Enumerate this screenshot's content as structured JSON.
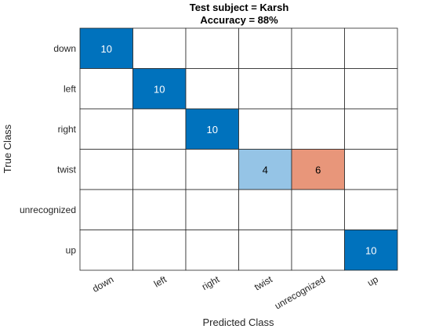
{
  "chart_data": {
    "type": "heatmap",
    "title": [
      "Test subject = Karsh",
      "Accuracy = 88%"
    ],
    "xlabel": "Predicted Class",
    "ylabel": "True Class",
    "row_labels": [
      "down",
      "left",
      "right",
      "twist",
      "unrecognized",
      "up"
    ],
    "col_labels": [
      "down",
      "left",
      "right",
      "twist",
      "unrecognized",
      "up"
    ],
    "matrix": [
      [
        10,
        0,
        0,
        0,
        0,
        0
      ],
      [
        0,
        10,
        0,
        0,
        0,
        0
      ],
      [
        0,
        0,
        10,
        0,
        0,
        0
      ],
      [
        0,
        0,
        0,
        4,
        6,
        0
      ],
      [
        0,
        0,
        0,
        0,
        0,
        0
      ],
      [
        0,
        0,
        0,
        0,
        0,
        10
      ]
    ],
    "colors": {
      "correct_full": "#0072bd",
      "correct_partial": "#95c4e6",
      "incorrect": "#e8967a",
      "empty": "#ffffff",
      "grid": "#262626",
      "text_dark_bg": "#ffffff",
      "text_light_bg": "#000000"
    },
    "grid": true
  }
}
